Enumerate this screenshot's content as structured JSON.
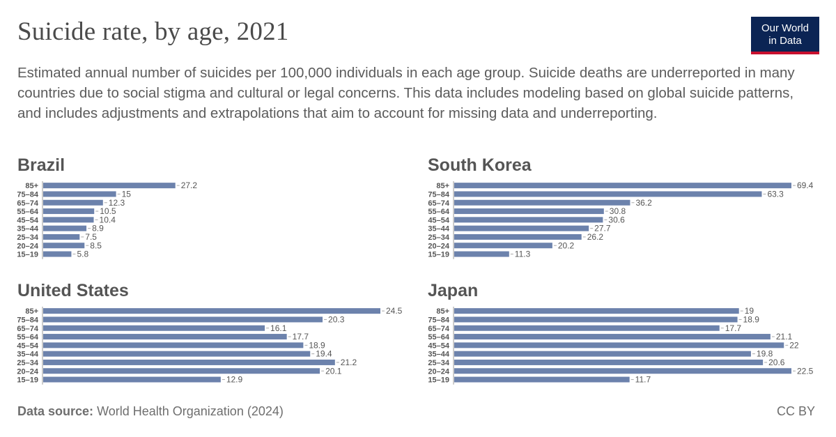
{
  "header": {
    "title": "Suicide rate, by age, 2021",
    "subtitle": "Estimated annual number of suicides per 100,000 individuals in each age group. Suicide deaths are underreported in many countries due to social stigma and cultural or legal concerns. This data includes modeling based on global suicide patterns, and includes adjustments and extrapolations that aim to account for missing data and underreporting.",
    "logo_line1": "Our World",
    "logo_line2": "in Data"
  },
  "footer": {
    "source_label": "Data source:",
    "source_text": "World Health Organization (2024)",
    "license": "CC BY"
  },
  "colors": {
    "bar": "#6c82ac",
    "axis": "#999999"
  },
  "chart_data": [
    {
      "type": "bar",
      "orientation": "horizontal",
      "title": "Brazil",
      "categories": [
        "85+",
        "75–84",
        "65–74",
        "55–64",
        "45–54",
        "35–44",
        "25–34",
        "20–24",
        "15–19"
      ],
      "values": [
        27.2,
        15,
        12.3,
        10.5,
        10.4,
        8.9,
        7.5,
        8.5,
        5.8
      ],
      "xlim": [
        0,
        69.4
      ]
    },
    {
      "type": "bar",
      "orientation": "horizontal",
      "title": "South Korea",
      "categories": [
        "85+",
        "75–84",
        "65–74",
        "55–64",
        "45–54",
        "35–44",
        "25–34",
        "20–24",
        "15–19"
      ],
      "values": [
        69.4,
        63.3,
        36.2,
        30.8,
        30.6,
        27.7,
        26.2,
        20.2,
        11.3
      ],
      "xlim": [
        0,
        69.4
      ]
    },
    {
      "type": "bar",
      "orientation": "horizontal",
      "title": "United States",
      "categories": [
        "85+",
        "75–84",
        "65–74",
        "55–64",
        "45–54",
        "35–44",
        "25–34",
        "20–24",
        "15–19"
      ],
      "values": [
        24.5,
        20.3,
        16.1,
        17.7,
        18.9,
        19.4,
        21.2,
        20.1,
        12.9
      ],
      "xlim": [
        0,
        24.5
      ]
    },
    {
      "type": "bar",
      "orientation": "horizontal",
      "title": "Japan",
      "categories": [
        "85+",
        "75–84",
        "65–74",
        "55–64",
        "45–54",
        "35–44",
        "25–34",
        "20–24",
        "15–19"
      ],
      "values": [
        19,
        18.9,
        17.7,
        21.1,
        22,
        19.8,
        20.6,
        22.5,
        11.7
      ],
      "xlim": [
        0,
        22.5
      ]
    }
  ]
}
